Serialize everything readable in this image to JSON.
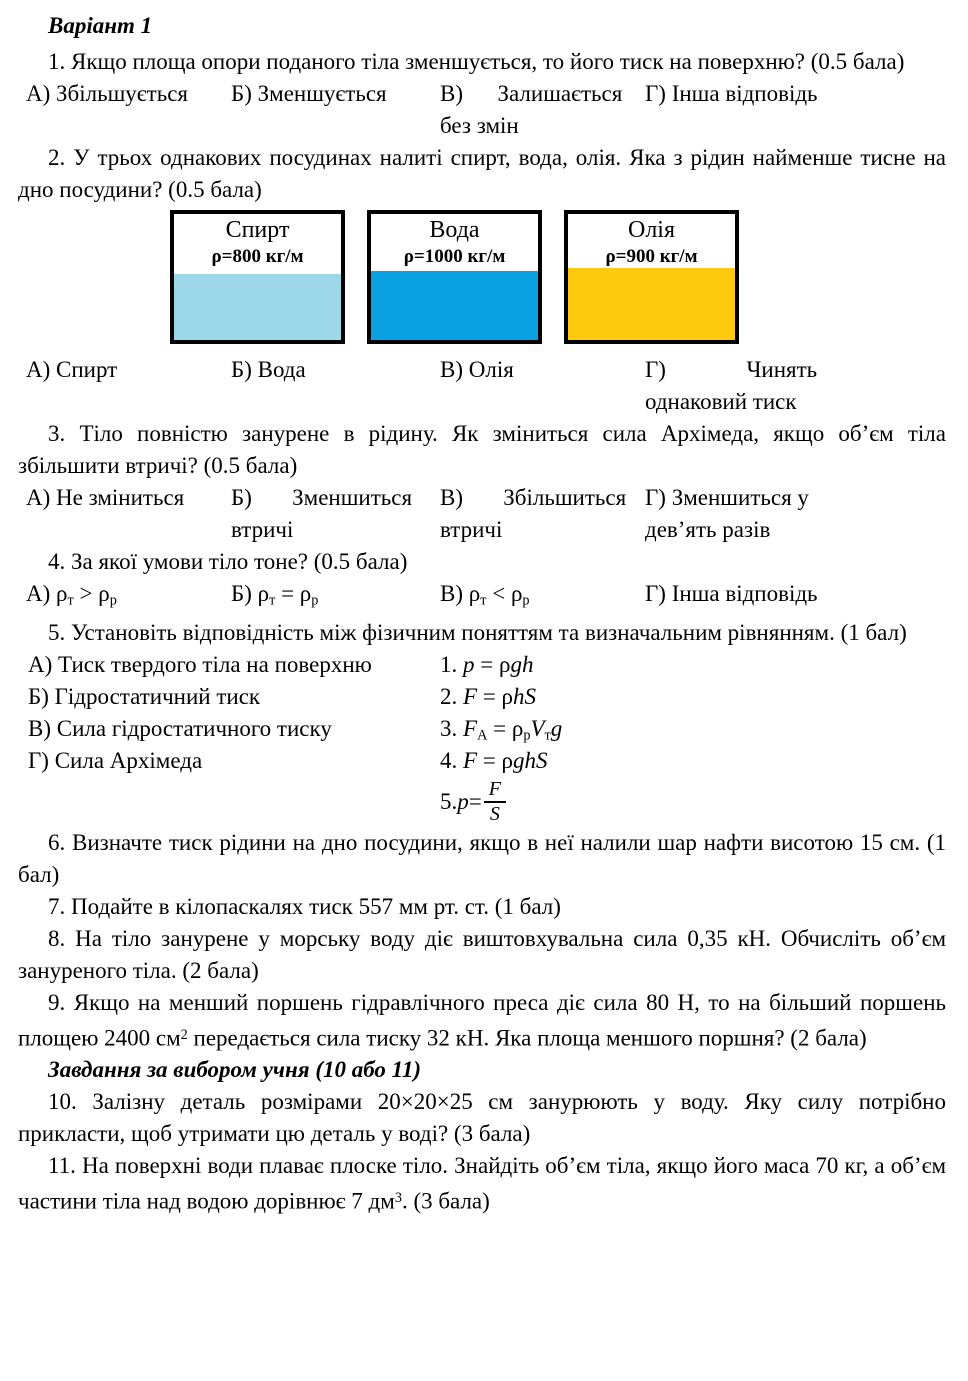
{
  "title": "Варіант  1",
  "q1": {
    "text": "1. Якщо площа опори поданого тіла зменшується, то його тиск на поверхню? (0.5 бала)",
    "answers": [
      "А) Збільшується",
      "Б) Зменшується",
      "В)      Залишається без змін",
      "Г) Інша відповідь"
    ]
  },
  "q2": {
    "text": "2. У трьох однакових посудинах налиті спирт, вода, олія. Яка з рідин найменше тисне на дно посудини? (0.5 бала)",
    "vessels": [
      {
        "name": "Спирт",
        "density": "ρ=800 кг/м",
        "liquid_color": "#9dd8e9",
        "liquid_height_pct": 52
      },
      {
        "name": "Вода",
        "density": "ρ=1000 кг/м",
        "liquid_color": "#09a1e2",
        "liquid_height_pct": 55
      },
      {
        "name": "Олія",
        "density": "ρ=900 кг/м",
        "liquid_color": "#ffc90e",
        "liquid_height_pct": 57
      }
    ],
    "answers": [
      "А) Спирт",
      "Б) Вода",
      "В) Олія",
      "Г)              Чинять однаковий тиск"
    ]
  },
  "q3": {
    "text": "3. Тіло повністю занурене в рідину. Як зміниться сила Архімеда, якщо об’єм тіла збільшити втричі? (0.5 бала)",
    "answers": [
      "А) Не зміниться",
      "Б)       Зменшиться втричі",
      "В)       Збільшиться втричі",
      "Г) Зменшиться у дев’ять разів"
    ]
  },
  "q4": {
    "text": "4. За якої умови тіло тоне? (0.5 бала)",
    "answers_html": [
      "А) ρ<sub>т</sub> &gt; ρ<sub>р</sub>",
      "Б) ρ<sub>т</sub> = ρ<sub>р</sub>",
      "В) ρ<sub>т</sub> &lt; ρ<sub>р</sub>",
      "Г) Інша відповідь"
    ]
  },
  "q5": {
    "text": "5. Установіть відповідність між фізичним поняттям та визначальним рівнянням. (1 бал)",
    "concepts": [
      "А) Тиск твердого тіла на поверхню",
      "Б) Гідростатичний тиск",
      "В) Сила гідростатичного тиску",
      "Г) Сила Архімеда"
    ],
    "equations_html": [
      "1. <i>p</i> = ρ<i>gh</i>",
      "2. <i>F</i> = ρ<i>hS</i>",
      "3. <i>F</i><sub>А</sub> = ρ<sub>р</sub><i>V</i><sub>т</sub><i>g</i>",
      "4. <i>F</i> = ρ<i>ghS</i>",
      "5. <i>p</i> = <span class=\"frac\"><span class=\"num\"><i>F</i></span><span class=\"den\"><i>S</i></span></span>"
    ]
  },
  "q6": {
    "text": "6. Визначте тиск рідини на дно посудини, якщо в неї налили шар нафти висотою 15 см. (1 бал)"
  },
  "q7": {
    "text": "7. Подайте в кілопаскалях тиск 557 мм рт. ст. (1 бал)"
  },
  "q8": {
    "text": "8. На тіло занурене у морську воду діє виштовхувальна сила 0,35 кН. Обчисліть об’єм зануреного тіла. (2 бала)"
  },
  "q9": {
    "text_html": "9. Якщо на менший поршень гідравлічного преса діє сила 80 Н, то на більший поршень площею 2400 см<sup>2</sup> передається сила тиску 32 кН. Яка площа меншого поршня? (2 бала)"
  },
  "choice_heading": "Завдання за вибором учня (10 або 11)",
  "q10": {
    "text": "10. Залізну деталь розмірами 20×20×25 см занурюють у воду. Яку силу потрібно прикласти, щоб утримати цю деталь у воді? (3 бала)"
  },
  "q11": {
    "text_html": "11. На поверхні води плаває плоске тіло. Знайдіть об’єм тіла, якщо його маса 70 кг, а об’єм частини тіла над водою дорівнює 7 дм<sup>3</sup>. (3 бала)"
  }
}
